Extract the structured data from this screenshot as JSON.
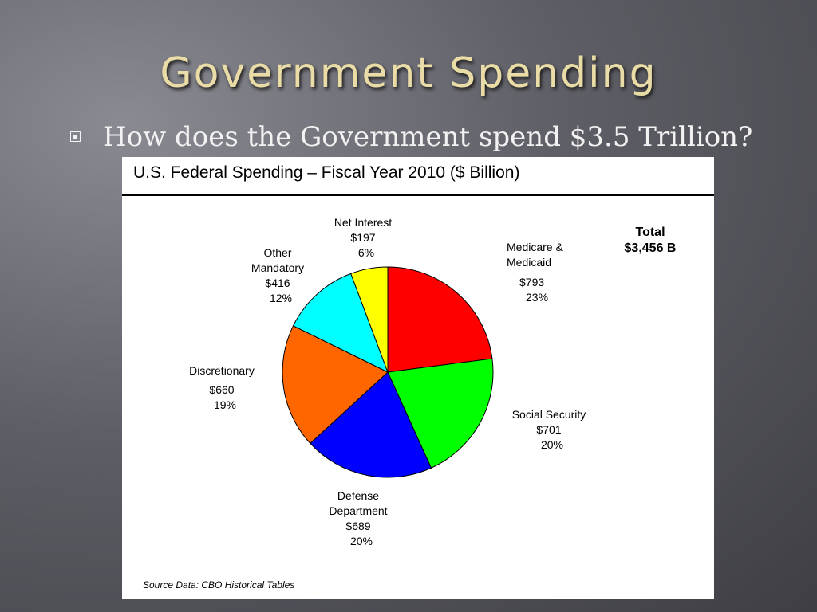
{
  "slide": {
    "title": "Government Spending",
    "bullet": "How does the Government spend $3.5 Trillion?"
  },
  "chart_data": {
    "type": "pie",
    "title": "U.S. Federal Spending – Fiscal Year 2010 ($ Billion)",
    "total_label": "Total",
    "total_value": "$3,456 B",
    "source": "Source Data:  CBO Historical Tables",
    "unit": "$ Billion",
    "slices": [
      {
        "label_lines": [
          "Medicare &",
          "Medicaid"
        ],
        "value": 793,
        "value_text": "$793",
        "percent_text": "23%",
        "color": "#ff0000"
      },
      {
        "label_lines": [
          "Social Security"
        ],
        "value": 701,
        "value_text": "$701",
        "percent_text": "20%",
        "color": "#00ff00"
      },
      {
        "label_lines": [
          "Defense",
          "Department"
        ],
        "value": 689,
        "value_text": "$689",
        "percent_text": "20%",
        "color": "#0000ff"
      },
      {
        "label_lines": [
          "Discretionary"
        ],
        "value": 660,
        "value_text": "$660",
        "percent_text": "19%",
        "color": "#ff6600"
      },
      {
        "label_lines": [
          "Other",
          "Mandatory"
        ],
        "value": 416,
        "value_text": "$416",
        "percent_text": "12%",
        "color": "#00ffff"
      },
      {
        "label_lines": [
          "Net Interest"
        ],
        "value": 197,
        "value_text": "$197",
        "percent_text": "6%",
        "color": "#ffff00"
      }
    ]
  }
}
